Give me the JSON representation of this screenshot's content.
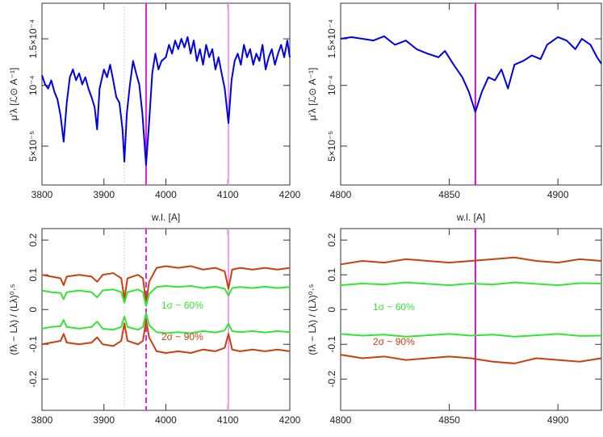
{
  "chart_data": [
    {
      "type": "line",
      "xlabel": "w.l. [A]",
      "ylabel": "μ'λ [ℒ⊙ A⁻¹]",
      "yscale": "sqrt",
      "xlim": [
        3800,
        4200
      ],
      "xticks": [
        3800,
        3900,
        4000,
        4100,
        4200
      ],
      "ylim": [
        2.7e-05,
        0.000195
      ],
      "yticks": [
        {
          "value": 5e-05,
          "label": "5×10⁻⁵"
        },
        {
          "value": 0.0001,
          "label": "10⁻⁴"
        },
        {
          "value": 0.00015,
          "label": "1.5×10⁻⁴"
        }
      ],
      "x": [
        3800,
        3805,
        3810,
        3815,
        3820,
        3825,
        3830,
        3835,
        3840,
        3845,
        3850,
        3855,
        3860,
        3865,
        3870,
        3875,
        3880,
        3885,
        3889,
        3893,
        3900,
        3905,
        3910,
        3915,
        3920,
        3925,
        3930,
        3933,
        3937,
        3942,
        3947,
        3952,
        3957,
        3962,
        3968,
        3973,
        3978,
        3983,
        3988,
        3993,
        4000,
        4005,
        4010,
        4015,
        4020,
        4025,
        4030,
        4035,
        4040,
        4045,
        4050,
        4055,
        4060,
        4065,
        4070,
        4075,
        4080,
        4085,
        4090,
        4095,
        4101,
        4106,
        4111,
        4116,
        4121,
        4126,
        4131,
        4136,
        4141,
        4146,
        4151,
        4156,
        4161,
        4166,
        4171,
        4176,
        4181,
        4186,
        4191,
        4196,
        4200
      ],
      "series": [
        {
          "color": "#0000e6",
          "values": [
            0.00011,
            0.000101,
            9.7e-05,
            0.000105,
            9.4e-05,
            8.7e-05,
            7.3e-05,
            5.3e-05,
            8.4e-05,
            0.000108,
            0.000116,
            0.000105,
            0.000112,
            0.000101,
            0.000108,
            9.7e-05,
            8.9e-05,
            8e-05,
            6.2e-05,
            9.7e-05,
            0.000116,
            0.000108,
            0.000121,
            0.000105,
            8.9e-05,
            8.4e-05,
            6.2e-05,
            4e-05,
            7.5e-05,
            0.000101,
            0.000125,
            0.000112,
            0.000101,
            7.5e-05,
            3.8e-05,
            6.8e-05,
            0.000112,
            0.000133,
            0.000116,
            0.000125,
            0.000129,
            0.000143,
            0.000133,
            0.000148,
            0.000138,
            0.00015,
            0.00014,
            0.000152,
            0.000133,
            0.000148,
            0.000125,
            0.000138,
            0.000121,
            0.000143,
            0.000129,
            0.000138,
            0.000116,
            0.000129,
            0.000112,
            9.7e-05,
            6.7e-05,
            0.000105,
            0.000125,
            0.000133,
            0.000121,
            0.000143,
            0.000129,
            0.000138,
            0.000121,
            0.000133,
            0.000125,
            0.000143,
            0.000116,
            0.000129,
            0.000138,
            0.000121,
            0.000133,
            0.000143,
            0.000129,
            0.000148,
            0.000129
          ]
        }
      ],
      "vlines": [
        {
          "x": 3933,
          "style": "dotted",
          "color": "#f0a0f0"
        },
        {
          "x": 3968,
          "style": "solid",
          "color": "#e020e0"
        },
        {
          "x": 4101,
          "style": "solid",
          "color": "#f0a0f0"
        }
      ]
    },
    {
      "type": "line",
      "xlabel": "w.l. [A]",
      "ylabel": "μ'λ [ℒ⊙ A⁻¹]",
      "yscale": "sqrt",
      "xlim": [
        4800,
        4920
      ],
      "xticks": [
        4800,
        4850,
        4900
      ],
      "ylim": [
        2.7e-05,
        0.000195
      ],
      "yticks": [
        {
          "value": 5e-05,
          "label": "5×10⁻⁵"
        },
        {
          "value": 0.0001,
          "label": "10⁻⁴"
        },
        {
          "value": 0.00015,
          "label": "1.5×10⁻⁴"
        }
      ],
      "x": [
        4800,
        4805,
        4810,
        4815,
        4820,
        4825,
        4830,
        4835,
        4840,
        4845,
        4848,
        4852,
        4856,
        4859,
        4862,
        4865,
        4868,
        4871,
        4874,
        4877,
        4880,
        4884,
        4888,
        4892,
        4895,
        4900,
        4904,
        4908,
        4911,
        4915,
        4918,
        4920
      ],
      "series": [
        {
          "color": "#0000e6",
          "values": [
            0.00015,
            0.000152,
            0.00015,
            0.000148,
            0.000153,
            0.000143,
            0.000148,
            0.000138,
            0.000133,
            0.000129,
            0.000136,
            0.000121,
            0.000108,
            9.4e-05,
            7.6e-05,
            9.4e-05,
            0.000108,
            0.000105,
            0.000116,
            9.7e-05,
            0.000121,
            0.000125,
            0.000131,
            0.000127,
            0.000143,
            0.000152,
            0.000148,
            0.000138,
            0.00015,
            0.000143,
            0.000129,
            0.000122
          ]
        }
      ],
      "vlines": [
        {
          "x": 4862,
          "style": "solid",
          "color": "#d010d0"
        }
      ]
    },
    {
      "type": "line",
      "xlabel": "w.l. [A]",
      "ylabel": "(fλ − Lλ) / (Lλ)⁰·⁵",
      "yscale": "linear",
      "xlim": [
        3800,
        4200
      ],
      "xticks": [
        3800,
        3900,
        4000,
        4100,
        4200
      ],
      "ylim": [
        -0.29,
        0.233
      ],
      "yticks": [
        -0.2,
        -0.1,
        0,
        0.1,
        0.2
      ],
      "x": [
        3800,
        3815,
        3830,
        3835,
        3840,
        3860,
        3880,
        3889,
        3898,
        3915,
        3928,
        3933,
        3938,
        3955,
        3963,
        3968,
        3973,
        3985,
        4000,
        4020,
        4040,
        4060,
        4080,
        4095,
        4101,
        4107,
        4120,
        4140,
        4160,
        4180,
        4200
      ],
      "series": [
        {
          "color": "#c84010",
          "values": [
            0.1,
            0.095,
            0.09,
            0.07,
            0.095,
            0.1,
            0.095,
            0.08,
            0.1,
            0.105,
            0.09,
            0.03,
            0.09,
            0.1,
            0.09,
            0.02,
            0.08,
            0.12,
            0.125,
            0.12,
            0.125,
            0.115,
            0.12,
            0.11,
            0.06,
            0.115,
            0.12,
            0.115,
            0.12,
            0.115,
            0.12
          ]
        },
        {
          "color": "#33e633",
          "values": [
            0.055,
            0.05,
            0.048,
            0.03,
            0.05,
            0.055,
            0.05,
            0.035,
            0.055,
            0.058,
            0.05,
            0.02,
            0.05,
            0.058,
            0.05,
            0.01,
            0.045,
            0.065,
            0.068,
            0.065,
            0.068,
            0.062,
            0.066,
            0.06,
            0.04,
            0.062,
            0.065,
            0.062,
            0.066,
            0.062,
            0.065
          ]
        },
        {
          "color": "#33e633",
          "values": [
            -0.055,
            -0.05,
            -0.048,
            -0.03,
            -0.05,
            -0.055,
            -0.05,
            -0.035,
            -0.055,
            -0.058,
            -0.05,
            -0.02,
            -0.05,
            -0.058,
            -0.05,
            -0.01,
            -0.045,
            -0.065,
            -0.068,
            -0.065,
            -0.068,
            -0.062,
            -0.066,
            -0.06,
            -0.04,
            -0.062,
            -0.065,
            -0.062,
            -0.066,
            -0.062,
            -0.065
          ]
        },
        {
          "color": "#c84010",
          "values": [
            -0.1,
            -0.095,
            -0.09,
            -0.07,
            -0.095,
            -0.1,
            -0.095,
            -0.08,
            -0.1,
            -0.105,
            -0.09,
            -0.04,
            -0.09,
            -0.1,
            -0.09,
            -0.03,
            -0.08,
            -0.12,
            -0.125,
            -0.12,
            -0.125,
            -0.115,
            -0.12,
            -0.11,
            -0.07,
            -0.115,
            -0.12,
            -0.115,
            -0.12,
            -0.115,
            -0.12
          ]
        }
      ],
      "vlines": [
        {
          "x": 3933,
          "style": "dotted",
          "color": "#f0a0f0"
        },
        {
          "x": 3968,
          "style": "dashed",
          "color": "#e020e0"
        },
        {
          "x": 4101,
          "style": "solid",
          "color": "#f0a0f0"
        }
      ],
      "annotations": [
        {
          "text": "1σ ~ 60%",
          "color": "#33e633"
        },
        {
          "text": "2σ ~ 90%",
          "color": "#c84010"
        }
      ]
    },
    {
      "type": "line",
      "xlabel": "w.l. [A]",
      "ylabel": "(fλ − Lλ) / (Lλ)⁰·⁵",
      "yscale": "linear",
      "xlim": [
        4800,
        4920
      ],
      "xticks": [
        4800,
        4850,
        4900
      ],
      "ylim": [
        -0.29,
        0.233
      ],
      "yticks": [
        -0.2,
        -0.1,
        0,
        0.1,
        0.2
      ],
      "x": [
        4800,
        4810,
        4820,
        4830,
        4840,
        4850,
        4860,
        4870,
        4880,
        4890,
        4900,
        4910,
        4920
      ],
      "series": [
        {
          "color": "#c84010",
          "values": [
            0.13,
            0.14,
            0.135,
            0.145,
            0.14,
            0.135,
            0.14,
            0.145,
            0.15,
            0.14,
            0.135,
            0.145,
            0.14
          ]
        },
        {
          "color": "#33e633",
          "values": [
            0.07,
            0.075,
            0.072,
            0.078,
            0.074,
            0.07,
            0.075,
            0.072,
            0.078,
            0.074,
            0.07,
            0.076,
            0.075
          ]
        },
        {
          "color": "#33e633",
          "values": [
            -0.07,
            -0.075,
            -0.072,
            -0.078,
            -0.074,
            -0.07,
            -0.075,
            -0.072,
            -0.078,
            -0.074,
            -0.07,
            -0.076,
            -0.075
          ]
        },
        {
          "color": "#c84010",
          "values": [
            -0.13,
            -0.14,
            -0.135,
            -0.145,
            -0.14,
            -0.135,
            -0.14,
            -0.15,
            -0.155,
            -0.14,
            -0.145,
            -0.15,
            -0.14
          ]
        }
      ],
      "vlines": [
        {
          "x": 4862,
          "style": "solid",
          "color": "#d010d0"
        }
      ],
      "annotations": [
        {
          "text": "1σ ~ 60%",
          "color": "#33e633"
        },
        {
          "text": "2σ ~ 90%",
          "color": "#c84010"
        }
      ]
    }
  ]
}
